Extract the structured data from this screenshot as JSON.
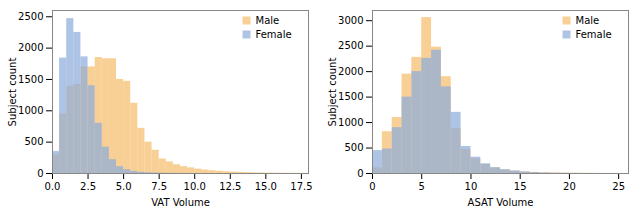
{
  "chart_data": [
    {
      "type": "histogram",
      "xlabel": "VAT Volume",
      "ylabel": "Subject count",
      "series": [
        {
          "name": "Male",
          "color": "#f5bc6a",
          "bins": [
            0.0,
            0.5,
            1.0,
            1.5,
            2.0,
            2.5,
            3.0,
            3.5,
            4.0,
            4.5,
            5.0,
            5.5,
            6.0,
            6.5,
            7.0,
            7.5,
            8.0,
            8.5,
            9.0,
            9.5,
            10.0,
            10.5,
            11.0,
            11.5,
            12.0,
            12.5,
            13.0,
            13.5,
            14.0,
            14.5,
            15.0,
            15.5,
            16.0,
            16.5,
            17.0,
            17.5,
            18.0
          ],
          "values": [
            300,
            950,
            1390,
            1420,
            1700,
            1700,
            1850,
            1830,
            1830,
            1500,
            1470,
            1120,
            720,
            500,
            370,
            230,
            185,
            140,
            110,
            90,
            70,
            55,
            45,
            35,
            28,
            22,
            18,
            14,
            10,
            8,
            6,
            5,
            4,
            3,
            2,
            1
          ]
        },
        {
          "name": "Female",
          "color": "#8aabdb",
          "bins": [
            0.0,
            0.5,
            1.0,
            1.5,
            2.0,
            2.5,
            3.0,
            3.5,
            4.0,
            4.5,
            5.0,
            5.5,
            6.0,
            6.5,
            7.0,
            7.5,
            8.0,
            8.5,
            9.0,
            9.5,
            10.0,
            10.5
          ],
          "values": [
            350,
            1840,
            2470,
            2250,
            1860,
            1400,
            800,
            420,
            220,
            110,
            60,
            35,
            20,
            12,
            8,
            5,
            3,
            2,
            1,
            1,
            0
          ]
        }
      ],
      "xlim": [
        0,
        18.0
      ],
      "ylim": [
        0,
        2600
      ],
      "xticks": [
        {
          "value": 0.0,
          "label": "0.0"
        },
        2.5,
        {
          "value": 5.0,
          "label": "5.0"
        },
        7.5,
        {
          "value": 10.0,
          "label": "10.0"
        },
        12.5,
        {
          "value": 15.0,
          "label": "15.0"
        },
        17.5
      ],
      "yticks": [
        0,
        500,
        1000,
        1500,
        2000,
        2500
      ],
      "legend": "upper right"
    },
    {
      "type": "histogram",
      "xlabel": "ASAT Volume",
      "ylabel": "Subject count",
      "series": [
        {
          "name": "Male",
          "color": "#f5bc6a",
          "bins": [
            0.0,
            1.0,
            2.0,
            3.0,
            4.0,
            5.0,
            6.0,
            7.0,
            8.0,
            9.0,
            10.0,
            11.0,
            12.0,
            13.0,
            14.0,
            15.0,
            16.0,
            17.0,
            18.0,
            19.0,
            20.0,
            21.0,
            22.0,
            23.0,
            24.0,
            25.0,
            26.0
          ],
          "values": [
            110,
            820,
            1100,
            1950,
            2280,
            3060,
            2480,
            1900,
            880,
            470,
            290,
            180,
            110,
            70,
            45,
            30,
            20,
            14,
            10,
            7,
            5,
            3,
            2,
            1,
            1,
            0
          ]
        },
        {
          "name": "Female",
          "color": "#8aabdb",
          "bins": [
            0.0,
            1.0,
            2.0,
            3.0,
            4.0,
            5.0,
            6.0,
            7.0,
            8.0,
            9.0,
            10.0,
            11.0,
            12.0,
            13.0,
            14.0,
            15.0,
            16.0,
            17.0,
            18.0,
            19.0,
            20.0,
            21.0,
            22.0,
            23.0,
            24.0,
            25.0,
            26.0
          ],
          "values": [
            450,
            480,
            900,
            1500,
            2000,
            2260,
            2420,
            1700,
            1200,
            530,
            320,
            190,
            115,
            75,
            50,
            30,
            18,
            10,
            6,
            4,
            2,
            1,
            1,
            0,
            0,
            0
          ]
        }
      ],
      "xlim": [
        0,
        26.0
      ],
      "ylim": [
        0,
        3200
      ],
      "xticks": [
        0,
        5,
        10,
        15,
        20,
        25
      ],
      "yticks": [
        0,
        500,
        1000,
        1500,
        2000,
        2500,
        3000
      ],
      "legend": "upper right"
    }
  ]
}
